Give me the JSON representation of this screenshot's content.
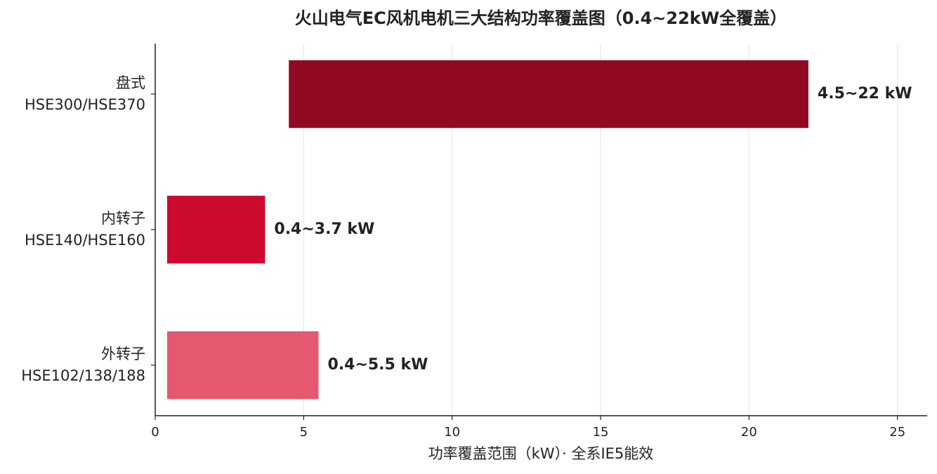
{
  "chart_data": {
    "type": "bar",
    "orientation": "horizontal",
    "title": "火山电气EC风机电机三大结构功率覆盖图（0.4~22kW全覆盖）",
    "xlabel": "功率覆盖范围（kW）· 全系IE5能效",
    "categories": [
      "盘式\nHSE300/HSE370",
      "内转子\nHSE140/HSE160",
      "外转子\nHSE102/138/188"
    ],
    "starts": [
      4.5,
      0.4,
      0.4
    ],
    "values": [
      22,
      3.7,
      5.5
    ],
    "value_labels": [
      "4.5~22 kW",
      "0.4~3.7 kW",
      "0.4~5.5 kW"
    ],
    "colors": [
      "#8f0a22",
      "#cc0a2e",
      "#e65770"
    ],
    "xlim": [
      0,
      26
    ],
    "xticks": [
      0,
      5,
      10,
      15,
      20,
      25
    ],
    "grid": true
  }
}
